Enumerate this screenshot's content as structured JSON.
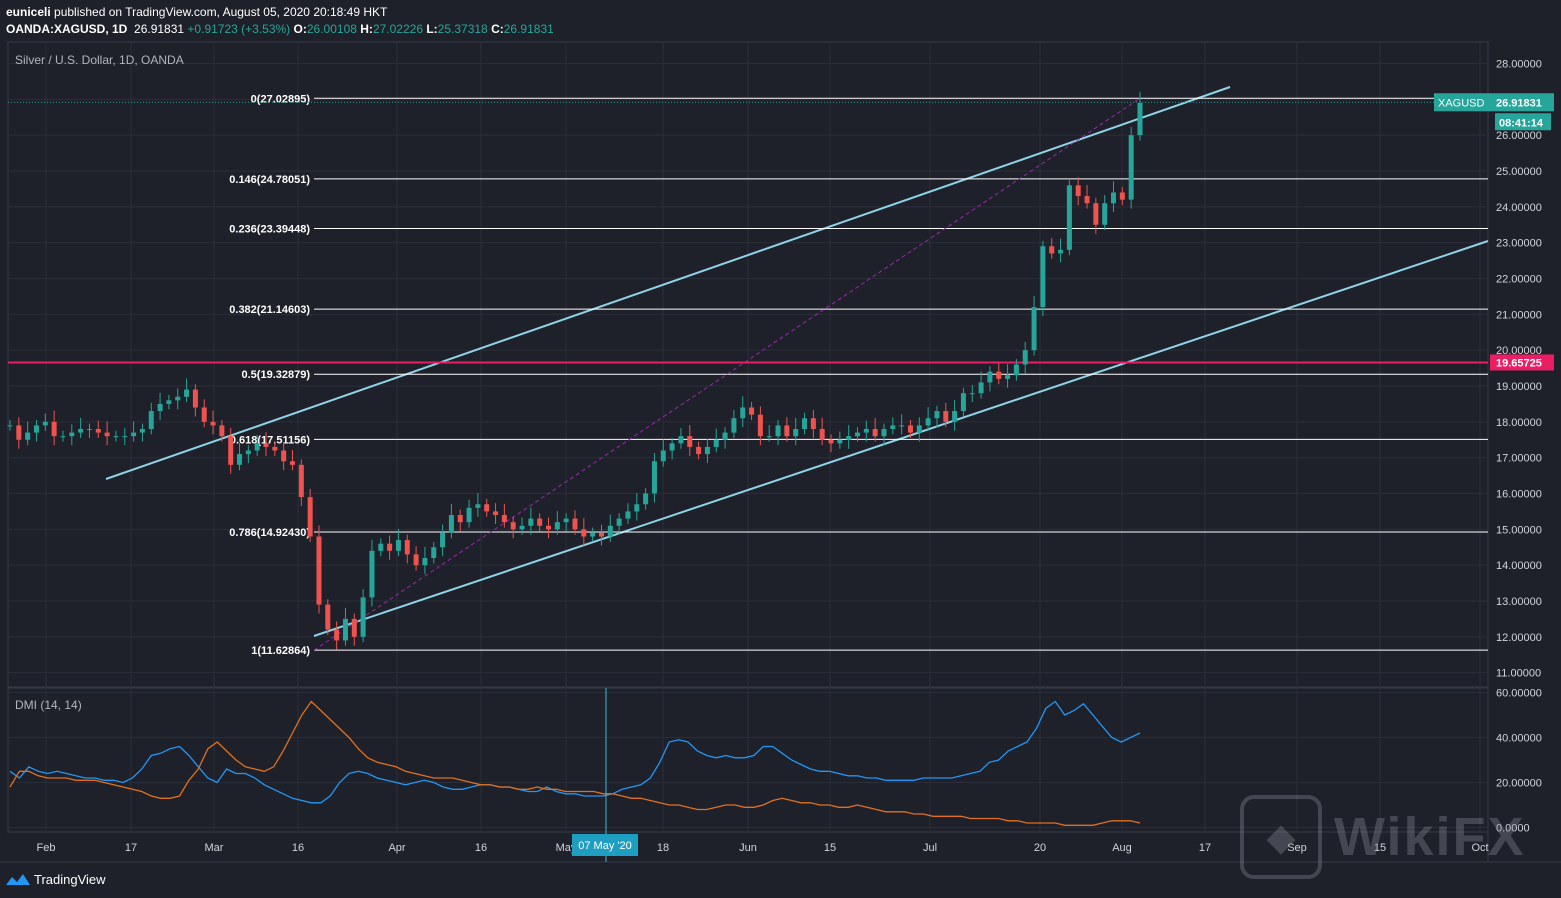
{
  "header": {
    "publisher": "euniceli",
    "published_text": " published on TradingView.com, August 05, 2020 20:18:49 HKT",
    "symbol": "OANDA:XAGUSD, 1D",
    "last": "26.91831",
    "change": "+0.91723 (+3.53%)",
    "o_label": "O:",
    "o": "26.00108",
    "h_label": "H:",
    "h": "27.02226",
    "l_label": "L:",
    "l": "25.37318",
    "c_label": "C:",
    "c": "26.91831"
  },
  "legend": "Silver / U.S. Dollar, 1D, OANDA",
  "dmi_label": "DMI (14, 14)",
  "brand": "TradingView",
  "watermark": "WikiFX",
  "colors": {
    "background": "#1f212a",
    "up": "#26a69a",
    "down": "#ef5350",
    "channel": "#8fd3e8",
    "fib": "#ffffff",
    "hline": "#e91e63",
    "diplus": "#2196f3",
    "diminus": "#e0701f",
    "trend": "#9c27b0"
  },
  "chart_data": [
    {
      "type": "candlestick",
      "ylim": [
        10.6,
        28.6
      ],
      "y_ticks": [
        "28.00000",
        "27.00000",
        "26.00000",
        "25.00000",
        "24.00000",
        "23.00000",
        "22.00000",
        "21.00000",
        "20.00000",
        "19.00000",
        "18.00000",
        "17.00000",
        "16.00000",
        "15.00000",
        "14.00000",
        "13.00000",
        "12.00000",
        "11.00000"
      ],
      "x_labels": [
        "Feb",
        "17",
        "Mar",
        "16",
        "Apr",
        "16",
        "May",
        "18",
        "Jun",
        "15",
        "Jul",
        "20",
        "Aug",
        "17",
        "Sep",
        "15",
        "Oct"
      ],
      "crosshair_x_label": "07 May '20",
      "last_price_label": "XAGUSD",
      "last_price": "26.91831",
      "countdown": "08:41:14",
      "horizontal_line": {
        "value": 19.65725,
        "label": "19.65725"
      },
      "fibonacci": [
        {
          "label": "0(27.02895)",
          "value": 27.02895
        },
        {
          "label": "0.146(24.78051)",
          "value": 24.78051
        },
        {
          "label": "0.236(23.39448)",
          "value": 23.39448
        },
        {
          "label": "0.382(21.14603)",
          "value": 21.14603
        },
        {
          "label": "0.5(19.32879)",
          "value": 19.32879
        },
        {
          "label": "0.618(17.51156)",
          "value": 17.51156
        },
        {
          "label": "0.786(14.92430)",
          "value": 14.9243
        },
        {
          "label": "1(11.62864)",
          "value": 11.62864
        }
      ],
      "close_series": [
        17.9,
        17.5,
        17.7,
        17.9,
        18.0,
        17.6,
        17.6,
        17.7,
        17.8,
        17.8,
        17.7,
        17.6,
        17.6,
        17.6,
        17.7,
        17.8,
        18.3,
        18.5,
        18.6,
        18.7,
        18.9,
        18.4,
        18.0,
        17.9,
        17.6,
        16.8,
        17.1,
        17.2,
        17.4,
        17.3,
        17.2,
        16.9,
        16.8,
        15.9,
        14.8,
        12.9,
        12.2,
        11.9,
        12.5,
        12.0,
        13.1,
        14.4,
        14.6,
        14.4,
        14.7,
        14.3,
        14.0,
        14.2,
        14.5,
        14.9,
        15.4,
        15.2,
        15.6,
        15.7,
        15.5,
        15.4,
        15.2,
        15.0,
        15.1,
        15.3,
        15.1,
        15.0,
        15.2,
        15.3,
        15.0,
        14.8,
        14.9,
        14.8,
        15.1,
        15.3,
        15.5,
        15.7,
        16.0,
        16.9,
        17.2,
        17.4,
        17.6,
        17.3,
        17.1,
        17.3,
        17.5,
        17.7,
        18.1,
        18.4,
        18.2,
        17.6,
        17.6,
        17.9,
        17.6,
        17.8,
        18.1,
        17.8,
        17.5,
        17.4,
        17.5,
        17.6,
        17.7,
        17.8,
        17.6,
        17.8,
        17.9,
        17.9,
        17.7,
        17.9,
        18.1,
        18.3,
        18.0,
        18.3,
        18.8,
        18.8,
        19.1,
        19.4,
        19.2,
        19.3,
        19.6,
        20.0,
        21.2,
        22.9,
        22.7,
        22.8,
        24.6,
        24.3,
        24.1,
        23.5,
        24.1,
        24.4,
        24.2,
        26.0,
        26.9
      ]
    },
    {
      "type": "line",
      "name": "DMI (14, 14)",
      "ylim": [
        -2,
        62
      ],
      "y_ticks": [
        "60.00000",
        "40.00000",
        "20.00000",
        "0.0000"
      ],
      "series": [
        {
          "values": [
            25,
            22,
            27,
            25,
            24,
            25,
            24,
            23,
            22,
            22,
            21,
            21,
            20,
            22,
            26,
            32,
            33,
            35,
            36,
            32,
            27,
            22,
            20,
            26,
            24,
            24,
            22,
            19,
            17,
            15,
            13,
            12,
            11,
            11,
            14,
            20,
            24,
            25,
            24,
            22,
            21,
            20,
            19,
            20,
            21,
            20,
            18,
            17,
            17,
            18,
            19,
            19,
            18,
            18,
            17,
            16,
            16,
            18,
            16,
            15,
            15,
            14,
            14,
            14,
            15,
            17,
            18,
            19,
            22,
            29,
            38,
            39,
            38,
            34,
            32,
            31,
            32,
            31,
            31,
            32,
            36,
            36,
            33,
            30,
            28,
            26,
            25,
            25,
            24,
            23,
            23,
            22,
            22,
            21,
            21,
            21,
            21,
            22,
            22,
            22,
            22,
            23,
            24,
            25,
            29,
            30,
            34,
            36,
            38,
            44,
            53,
            56,
            50,
            52,
            55,
            50,
            45,
            40,
            38,
            40,
            42
          ]
        },
        {
          "values": [
            18,
            25,
            25,
            23,
            22,
            22,
            22,
            21,
            21,
            21,
            20,
            19,
            18,
            17,
            16,
            14,
            13,
            13,
            14,
            21,
            26,
            35,
            38,
            34,
            30,
            27,
            26,
            25,
            27,
            34,
            42,
            50,
            56,
            52,
            48,
            44,
            40,
            35,
            31,
            29,
            28,
            27,
            25,
            24,
            23,
            22,
            22,
            22,
            21,
            20,
            19,
            19,
            18,
            18,
            17,
            17,
            18,
            17,
            17,
            16,
            16,
            16,
            16,
            15,
            15,
            14,
            13,
            13,
            12,
            11,
            10,
            10,
            9,
            8,
            8,
            9,
            10,
            10,
            9,
            9,
            10,
            12,
            13,
            12,
            11,
            11,
            10,
            10,
            9,
            9,
            10,
            9,
            8,
            7,
            7,
            7,
            6,
            6,
            5,
            5,
            5,
            5,
            4,
            4,
            4,
            4,
            3,
            3,
            2,
            2,
            2,
            2,
            1,
            1,
            1,
            1,
            2,
            3,
            3,
            3,
            2
          ]
        }
      ]
    }
  ]
}
